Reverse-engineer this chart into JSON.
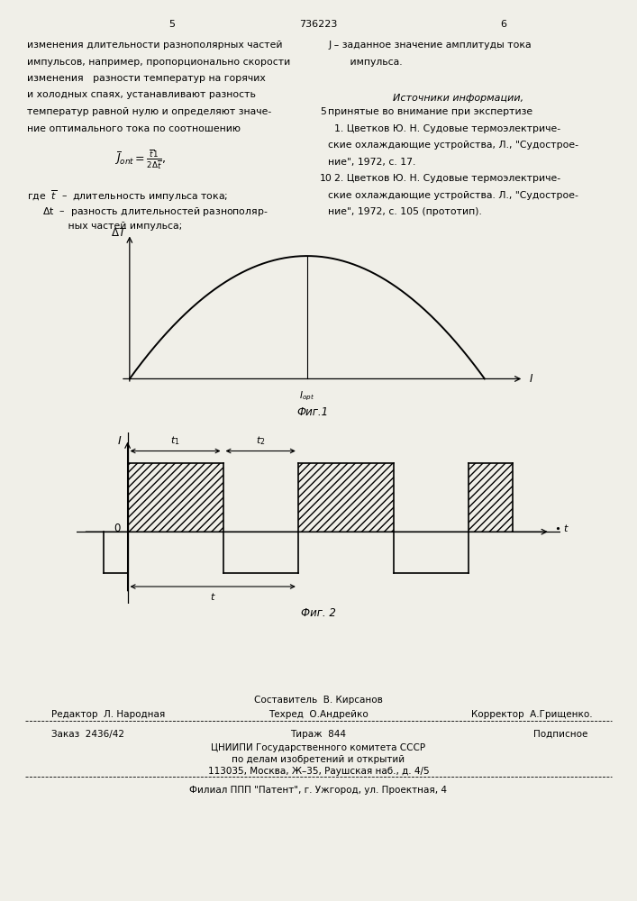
{
  "bg_color": "#f0efe8",
  "page_num_left": "5",
  "page_num_center": "736223",
  "page_num_right": "6",
  "left_col": [
    "изменения длительности разнополярных частей",
    "импульсов, например, пропорционально скорости",
    "изменения   разности температур на горячих",
    "и холодных спаях, устанавливают разность",
    "температур равной нулю и определяют значе-",
    "ние оптимального тока по соотношению"
  ],
  "right_col_j": "J – заданное значение амплитуды тока",
  "right_col_j2": "       импульса.",
  "right_col_header": "Источники информации,",
  "right_col_sub": "принятые во внимание при экспертизе",
  "right_col_line5": "5",
  "right_col_line10": "10",
  "right_col_refs": [
    "  1. Цветков Ю. Н. Судовые термоэлектриче-",
    "ские охлаждающие устройства, Л., \"Судострое-",
    "ние\", 1972, с. 17.",
    "  2. Цветков Ю. Н. Судовые термоэлектриче-",
    "ские охлаждающие устройства. Л., \"Судострое-",
    "ние\", 1972, с. 105 (прототип)."
  ],
  "fig1_caption": "Фиг.1",
  "fig2_caption": "Фиг. 2",
  "footer_editor": "Редактор  Л. Народная",
  "footer_composer": "Составитель  В. Кирсанов",
  "footer_techred": "Техред  О.Андрейко",
  "footer_corrector": "Корректор  А.Грищенко.",
  "footer_order": "Заказ  2436/42",
  "footer_tirazh": "Тираж  844",
  "footer_podpisnoe": "Подписное",
  "footer_tsniip": "ЦНИИПИ Государственного комитета СССР",
  "footer_po_delam": "по делам изобретений и открытий",
  "footer_address": "113035, Москва, Ж–35, Раушская наб., д. 4/5",
  "footer_filial": "Филиал ППП \"Патент\", г. Ужгород, ул. Проектная, 4",
  "hatch_pattern": "////"
}
